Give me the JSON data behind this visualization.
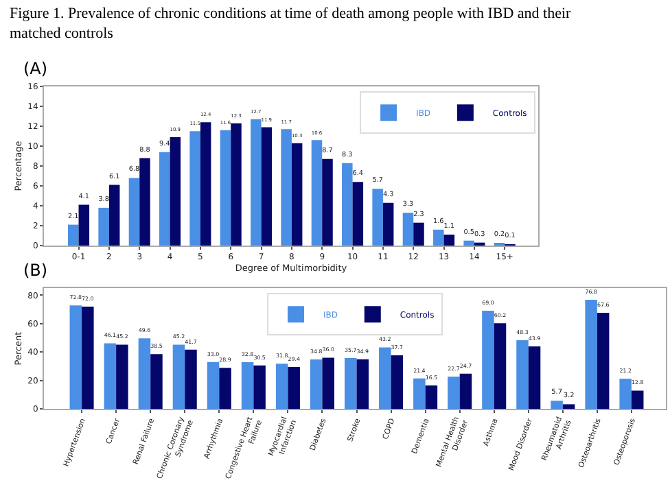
{
  "chart_data": [
    {
      "type": "bar",
      "title": "(A)",
      "annotations": [
        "Figure 1. Prevalence of chronic conditions at time of death among people with IBD and their matched controls"
      ],
      "xlabel": "Degree of Multimorbidity",
      "ylabel": "Percentage",
      "categories": [
        "0-1",
        "2",
        "3",
        "4",
        "5",
        "6",
        "7",
        "8",
        "9",
        "10",
        "11",
        "12",
        "13",
        "14",
        "15+"
      ],
      "series": [
        {
          "name": "IBD",
          "color": "#4a8fe6",
          "values": [
            2.1,
            3.8,
            6.8,
            9.4,
            11.5,
            11.6,
            12.7,
            11.7,
            10.6,
            8.3,
            5.7,
            3.3,
            1.6,
            0.5,
            0.2
          ],
          "value_labels": [
            "2.1",
            "3.8",
            "6.8",
            "9.4",
            "11.5",
            "11.6",
            "12.7",
            "11.7",
            "10.6",
            "8.3",
            "5.7",
            "3.3",
            "1.6",
            "0.5",
            "0.2"
          ]
        },
        {
          "name": "Controls",
          "color": "#05066b",
          "values": [
            4.1,
            6.1,
            8.8,
            10.9,
            12.4,
            12.3,
            11.9,
            10.3,
            8.7,
            6.4,
            4.3,
            2.3,
            1.1,
            0.3,
            0.1
          ],
          "value_labels": [
            "4.1",
            "6.1",
            "8.8",
            "10.9",
            "12.4",
            "12.3",
            "11.9",
            "10.3",
            "8.7",
            "6.4",
            "4.3",
            "2.3",
            "1.1",
            "0.3",
            "0.1"
          ]
        }
      ],
      "ylim": [
        0,
        16
      ],
      "yticks": [
        0,
        2,
        4,
        6,
        8,
        10,
        12,
        14,
        16
      ],
      "legend": "top right"
    },
    {
      "type": "bar",
      "title": "(B)",
      "ylabel": "Percent",
      "categories": [
        "Hypertension",
        "Cancer",
        "Renal Failure",
        "Chronic Coronary Syndrome",
        "Arrhythmia",
        "Congestive Heart Failure",
        "Myocardial Infarction",
        "Diabetes",
        "Stroke",
        "COPD",
        "Dementia",
        "Mental Health Disorder",
        "Asthma",
        "Mood Disorder",
        "Rheumatoid Arthritis",
        "Osteoarthritis",
        "Osteoporosis"
      ],
      "series": [
        {
          "name": "IBD",
          "color": "#4a8fe6",
          "values": [
            72.8,
            46.1,
            49.6,
            45.2,
            33.0,
            32.8,
            31.8,
            34.8,
            35.7,
            43.2,
            21.4,
            22.7,
            69.0,
            48.3,
            5.7,
            76.8,
            21.2
          ],
          "value_labels": [
            "72.8",
            "46.1",
            "49.6",
            "45.2",
            "33.0",
            "32.8",
            "31.8",
            "34.8",
            "35.7",
            "43.2",
            "21.4",
            "22.7",
            "69.0",
            "48.3",
            "5.7",
            "76.8",
            "21.2"
          ]
        },
        {
          "name": "Controls",
          "color": "#05066b",
          "values": [
            72.0,
            45.2,
            38.5,
            41.7,
            28.9,
            30.5,
            29.4,
            36.0,
            34.9,
            37.7,
            16.5,
            24.7,
            60.2,
            43.9,
            3.2,
            67.6,
            12.8
          ],
          "value_labels": [
            "72.0",
            "45.2",
            "38.5",
            "41.7",
            "28.9",
            "30.5",
            "29.4",
            "36.0",
            "34.9",
            "37.7",
            "16.5",
            "24.7",
            "60.2",
            "43.9",
            "3.2",
            "67.6",
            "12.8"
          ]
        }
      ],
      "ylim": [
        0,
        85
      ],
      "yticks": [
        0,
        20,
        40,
        60,
        80
      ],
      "legend": "top"
    }
  ]
}
